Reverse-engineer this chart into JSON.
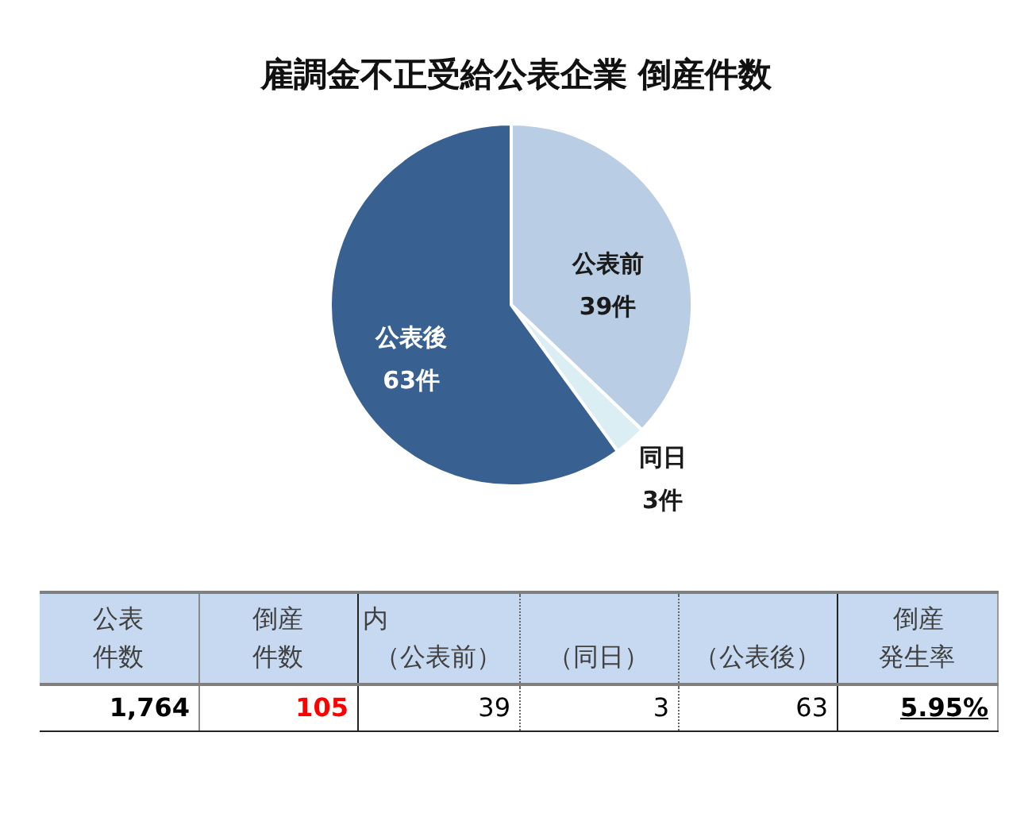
{
  "chart_data": [
    {
      "type": "pie",
      "title": "雇調金不正受給公表企業 倒産件数",
      "categories": [
        "公表前",
        "同日",
        "公表後"
      ],
      "values": [
        39,
        3,
        63
      ],
      "colors": [
        "#b9cde5",
        "#dbeef4",
        "#386192"
      ],
      "value_labels": [
        "39件",
        "3件",
        "63件"
      ]
    },
    {
      "type": "other",
      "categories": [
        "公表件数",
        "倒産件数",
        "（公表前）",
        "（同日）",
        "（公表後）",
        "倒産発生率"
      ],
      "value_labels": [
        "1,764",
        "105",
        "39",
        "3",
        "63",
        "5.95%"
      ],
      "annotations": [
        "内"
      ]
    }
  ]
}
